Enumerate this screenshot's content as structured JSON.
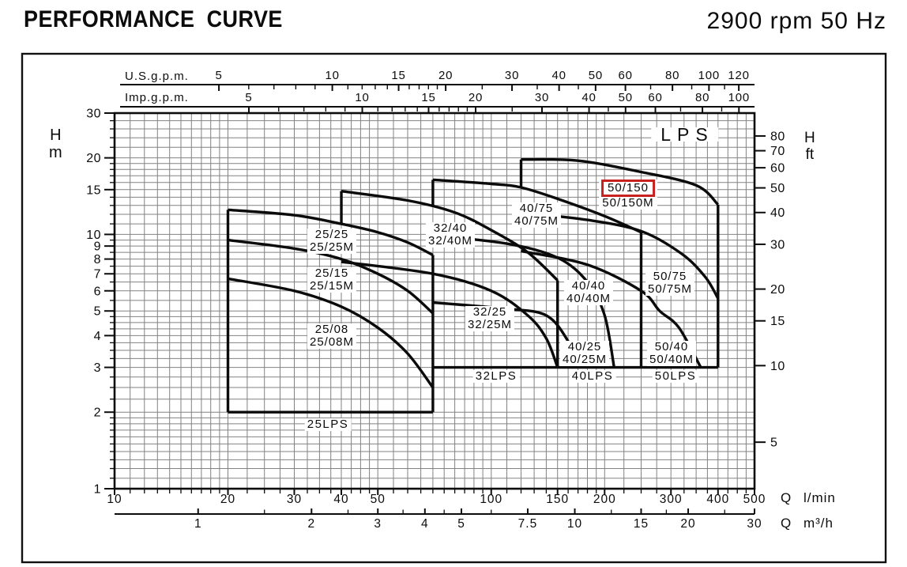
{
  "header": {
    "title": "PERFORMANCE CURVE",
    "speed": "2900 rpm 50 Hz"
  },
  "chart_data": {
    "type": "line",
    "title": "LPS",
    "scale": "log-log",
    "grid": "on",
    "x_axis_top_us": {
      "label": "U.S.g.p.m.",
      "ticks": [
        5,
        10,
        15,
        20,
        30,
        40,
        50,
        60,
        80,
        100,
        120
      ],
      "lmin_per_unit": 3.785
    },
    "x_axis_top_imp": {
      "label": "Imp.g.p.m.",
      "ticks": [
        5,
        10,
        15,
        20,
        30,
        40,
        50,
        60,
        80,
        100
      ],
      "lmin_per_unit": 4.546
    },
    "x_axis_bottom_primary": {
      "label": "Q l/min",
      "ticks": [
        10,
        20,
        30,
        40,
        50,
        100,
        150,
        200,
        300,
        400,
        500
      ],
      "range": [
        10,
        500
      ]
    },
    "x_axis_bottom_secondary": {
      "label": "Q m³/h",
      "ticks": [
        1,
        2,
        3,
        4,
        5,
        7.5,
        10,
        15,
        20,
        30
      ],
      "lmin_per_unit": 16.6667
    },
    "y_axis_left": {
      "symbol": "H",
      "unit": "m",
      "ticks": [
        30,
        20,
        15,
        10,
        9,
        8,
        7,
        6,
        5,
        4,
        3,
        2,
        1
      ],
      "range": [
        1,
        30
      ]
    },
    "y_axis_right": {
      "symbol": "H",
      "unit": "ft",
      "ticks": [
        80,
        70,
        60,
        50,
        40,
        30,
        20,
        15,
        10,
        5
      ],
      "m_per_ft": 0.3048
    },
    "series": [
      {
        "name": "25/25",
        "points": [
          [
            20,
            12.5
          ],
          [
            30,
            11.9
          ],
          [
            40,
            11.0
          ],
          [
            50,
            10.2
          ],
          [
            60,
            9.3
          ],
          [
            70,
            8.3
          ]
        ]
      },
      {
        "name": "25/15",
        "points": [
          [
            20,
            9.5
          ],
          [
            30,
            8.8
          ],
          [
            40,
            8.0
          ],
          [
            50,
            7.0
          ],
          [
            60,
            6.0
          ],
          [
            70,
            4.9
          ]
        ]
      },
      {
        "name": "25/08",
        "points": [
          [
            20,
            6.7
          ],
          [
            30,
            6.0
          ],
          [
            40,
            5.2
          ],
          [
            50,
            4.3
          ],
          [
            60,
            3.4
          ],
          [
            70,
            2.5
          ]
        ]
      },
      {
        "name": "32/40",
        "points": [
          [
            40,
            14.8
          ],
          [
            60,
            13.6
          ],
          [
            80,
            12.2
          ],
          [
            100,
            10.4
          ],
          [
            125,
            8.5
          ],
          [
            150,
            6.6
          ]
        ]
      },
      {
        "name": "32/25",
        "points": [
          [
            40,
            7.8
          ],
          [
            70,
            7.0
          ],
          [
            100,
            6.0
          ],
          [
            125,
            4.8
          ],
          [
            140,
            3.9
          ],
          [
            150,
            3.0
          ]
        ]
      },
      {
        "name": "40/75",
        "points": [
          [
            70,
            16.4
          ],
          [
            100,
            15.8
          ],
          [
            120,
            15.3
          ],
          [
            150,
            13.8
          ],
          [
            200,
            11.8
          ],
          [
            250,
            10.2
          ]
        ]
      },
      {
        "name": "40/40",
        "points": [
          [
            70,
            9.9
          ],
          [
            110,
            9.2
          ],
          [
            150,
            8.1
          ],
          [
            180,
            6.5
          ],
          [
            200,
            4.8
          ],
          [
            212,
            3.0
          ]
        ]
      },
      {
        "name": "40/25",
        "points": [
          [
            70,
            5.4
          ],
          [
            110,
            5.1
          ],
          [
            140,
            4.8
          ],
          [
            160,
            3.8
          ],
          [
            170,
            3.0
          ]
        ]
      },
      {
        "name": "50/150",
        "points": [
          [
            120,
            19.7
          ],
          [
            170,
            19.5
          ],
          [
            250,
            17.6
          ],
          [
            350,
            15.6
          ],
          [
            400,
            13.1
          ]
        ]
      },
      {
        "name": "50/75",
        "points": [
          [
            120,
            12.2
          ],
          [
            180,
            11.4
          ],
          [
            250,
            10.3
          ],
          [
            320,
            8.4
          ],
          [
            370,
            6.8
          ],
          [
            400,
            5.6
          ]
        ]
      },
      {
        "name": "50/40",
        "points": [
          [
            120,
            8.6
          ],
          [
            180,
            7.6
          ],
          [
            250,
            6.0
          ],
          [
            280,
            5.0
          ],
          [
            315,
            4.3
          ],
          [
            360,
            3.0
          ]
        ]
      }
    ],
    "envelopes": [
      {
        "name": "25LPS",
        "flow_range_lmin": [
          20,
          70
        ],
        "min_head_m": 2,
        "segments": [
          [
            [
              20,
              12.5
            ],
            [
              20,
              2.0
            ]
          ],
          [
            [
              20,
              2.0
            ],
            [
              70,
              2.0
            ]
          ],
          [
            [
              70,
              2.0
            ],
            [
              70,
              8.3
            ]
          ]
        ]
      },
      {
        "name": "32LPS",
        "flow_range_lmin": [
          40,
          150
        ],
        "min_head_m": 3,
        "segments": [
          [
            [
              40,
              14.8
            ],
            [
              40,
              11.0
            ]
          ],
          [
            [
              70,
              3.0
            ],
            [
              150,
              3.0
            ]
          ],
          [
            [
              150,
              3.0
            ],
            [
              150,
              6.6
            ]
          ]
        ]
      },
      {
        "name": "40LPS",
        "flow_range_lmin": [
          70,
          250
        ],
        "min_head_m": 3,
        "segments": [
          [
            [
              70,
              16.4
            ],
            [
              70,
              12.9
            ]
          ],
          [
            [
              150,
              3.0
            ],
            [
              250,
              3.0
            ]
          ],
          [
            [
              250,
              3.0
            ],
            [
              250,
              10.2
            ]
          ]
        ]
      },
      {
        "name": "50LPS",
        "flow_range_lmin": [
          120,
          400
        ],
        "min_head_m": 3,
        "segments": [
          [
            [
              120,
              19.7
            ],
            [
              120,
              15.3
            ]
          ],
          [
            [
              250,
              3.0
            ],
            [
              400,
              3.0
            ]
          ],
          [
            [
              400,
              3.0
            ],
            [
              400,
              13.1
            ]
          ]
        ]
      }
    ],
    "highlight": {
      "label": "50/150",
      "color": "#c92020"
    },
    "labels": [
      {
        "id": "lps-series",
        "cls": "lps",
        "lines": [
          "LPS"
        ],
        "q": 327,
        "h": 24.7
      },
      {
        "id": "25-25",
        "cls": "pump",
        "lines": [
          "25/25",
          "25/25M"
        ],
        "q": 37.8,
        "h": 9.4
      },
      {
        "id": "25-15",
        "cls": "pump",
        "lines": [
          "25/15",
          "25/15M"
        ],
        "q": 37.8,
        "h": 6.6
      },
      {
        "id": "25-08",
        "cls": "pump",
        "lines": [
          "25/08",
          "25/08M"
        ],
        "q": 37.8,
        "h": 3.98
      },
      {
        "id": "32-40",
        "cls": "pump",
        "lines": [
          "32/40",
          "32/40M"
        ],
        "q": 78,
        "h": 9.95
      },
      {
        "id": "32-25",
        "cls": "pump",
        "lines": [
          "32/25",
          "32/25M"
        ],
        "q": 99,
        "h": 4.66
      },
      {
        "id": "40-75",
        "cls": "pump",
        "lines": [
          "40/75",
          "40/75M"
        ],
        "q": 132,
        "h": 11.9
      },
      {
        "id": "40-40",
        "cls": "pump",
        "lines": [
          "40/40",
          "40/40M"
        ],
        "q": 181,
        "h": 5.9
      },
      {
        "id": "40-25",
        "cls": "pump",
        "lines": [
          "40/25",
          "40/25M"
        ],
        "q": 177,
        "h": 3.4
      },
      {
        "id": "50-150",
        "cls": "pump",
        "lines": [
          "50/150",
          "50/150M"
        ],
        "q": 231,
        "h": 14.4,
        "boxed": 0
      },
      {
        "id": "50-75",
        "cls": "pump",
        "lines": [
          "50/75",
          "50/75M"
        ],
        "q": 298,
        "h": 6.45
      },
      {
        "id": "50-40",
        "cls": "pump",
        "lines": [
          "50/40",
          "50/40M"
        ],
        "q": 301,
        "h": 3.4
      },
      {
        "id": "25lps",
        "cls": "group",
        "lines": [
          "25LPS"
        ],
        "q": 36.8,
        "h": 1.78
      },
      {
        "id": "32lps",
        "cls": "group",
        "lines": [
          "32LPS"
        ],
        "q": 103,
        "h": 2.77
      },
      {
        "id": "40lps",
        "cls": "group",
        "lines": [
          "40LPS"
        ],
        "q": 186,
        "h": 2.76
      },
      {
        "id": "50lps",
        "cls": "group",
        "lines": [
          "50LPS"
        ],
        "q": 309,
        "h": 2.76
      }
    ]
  }
}
